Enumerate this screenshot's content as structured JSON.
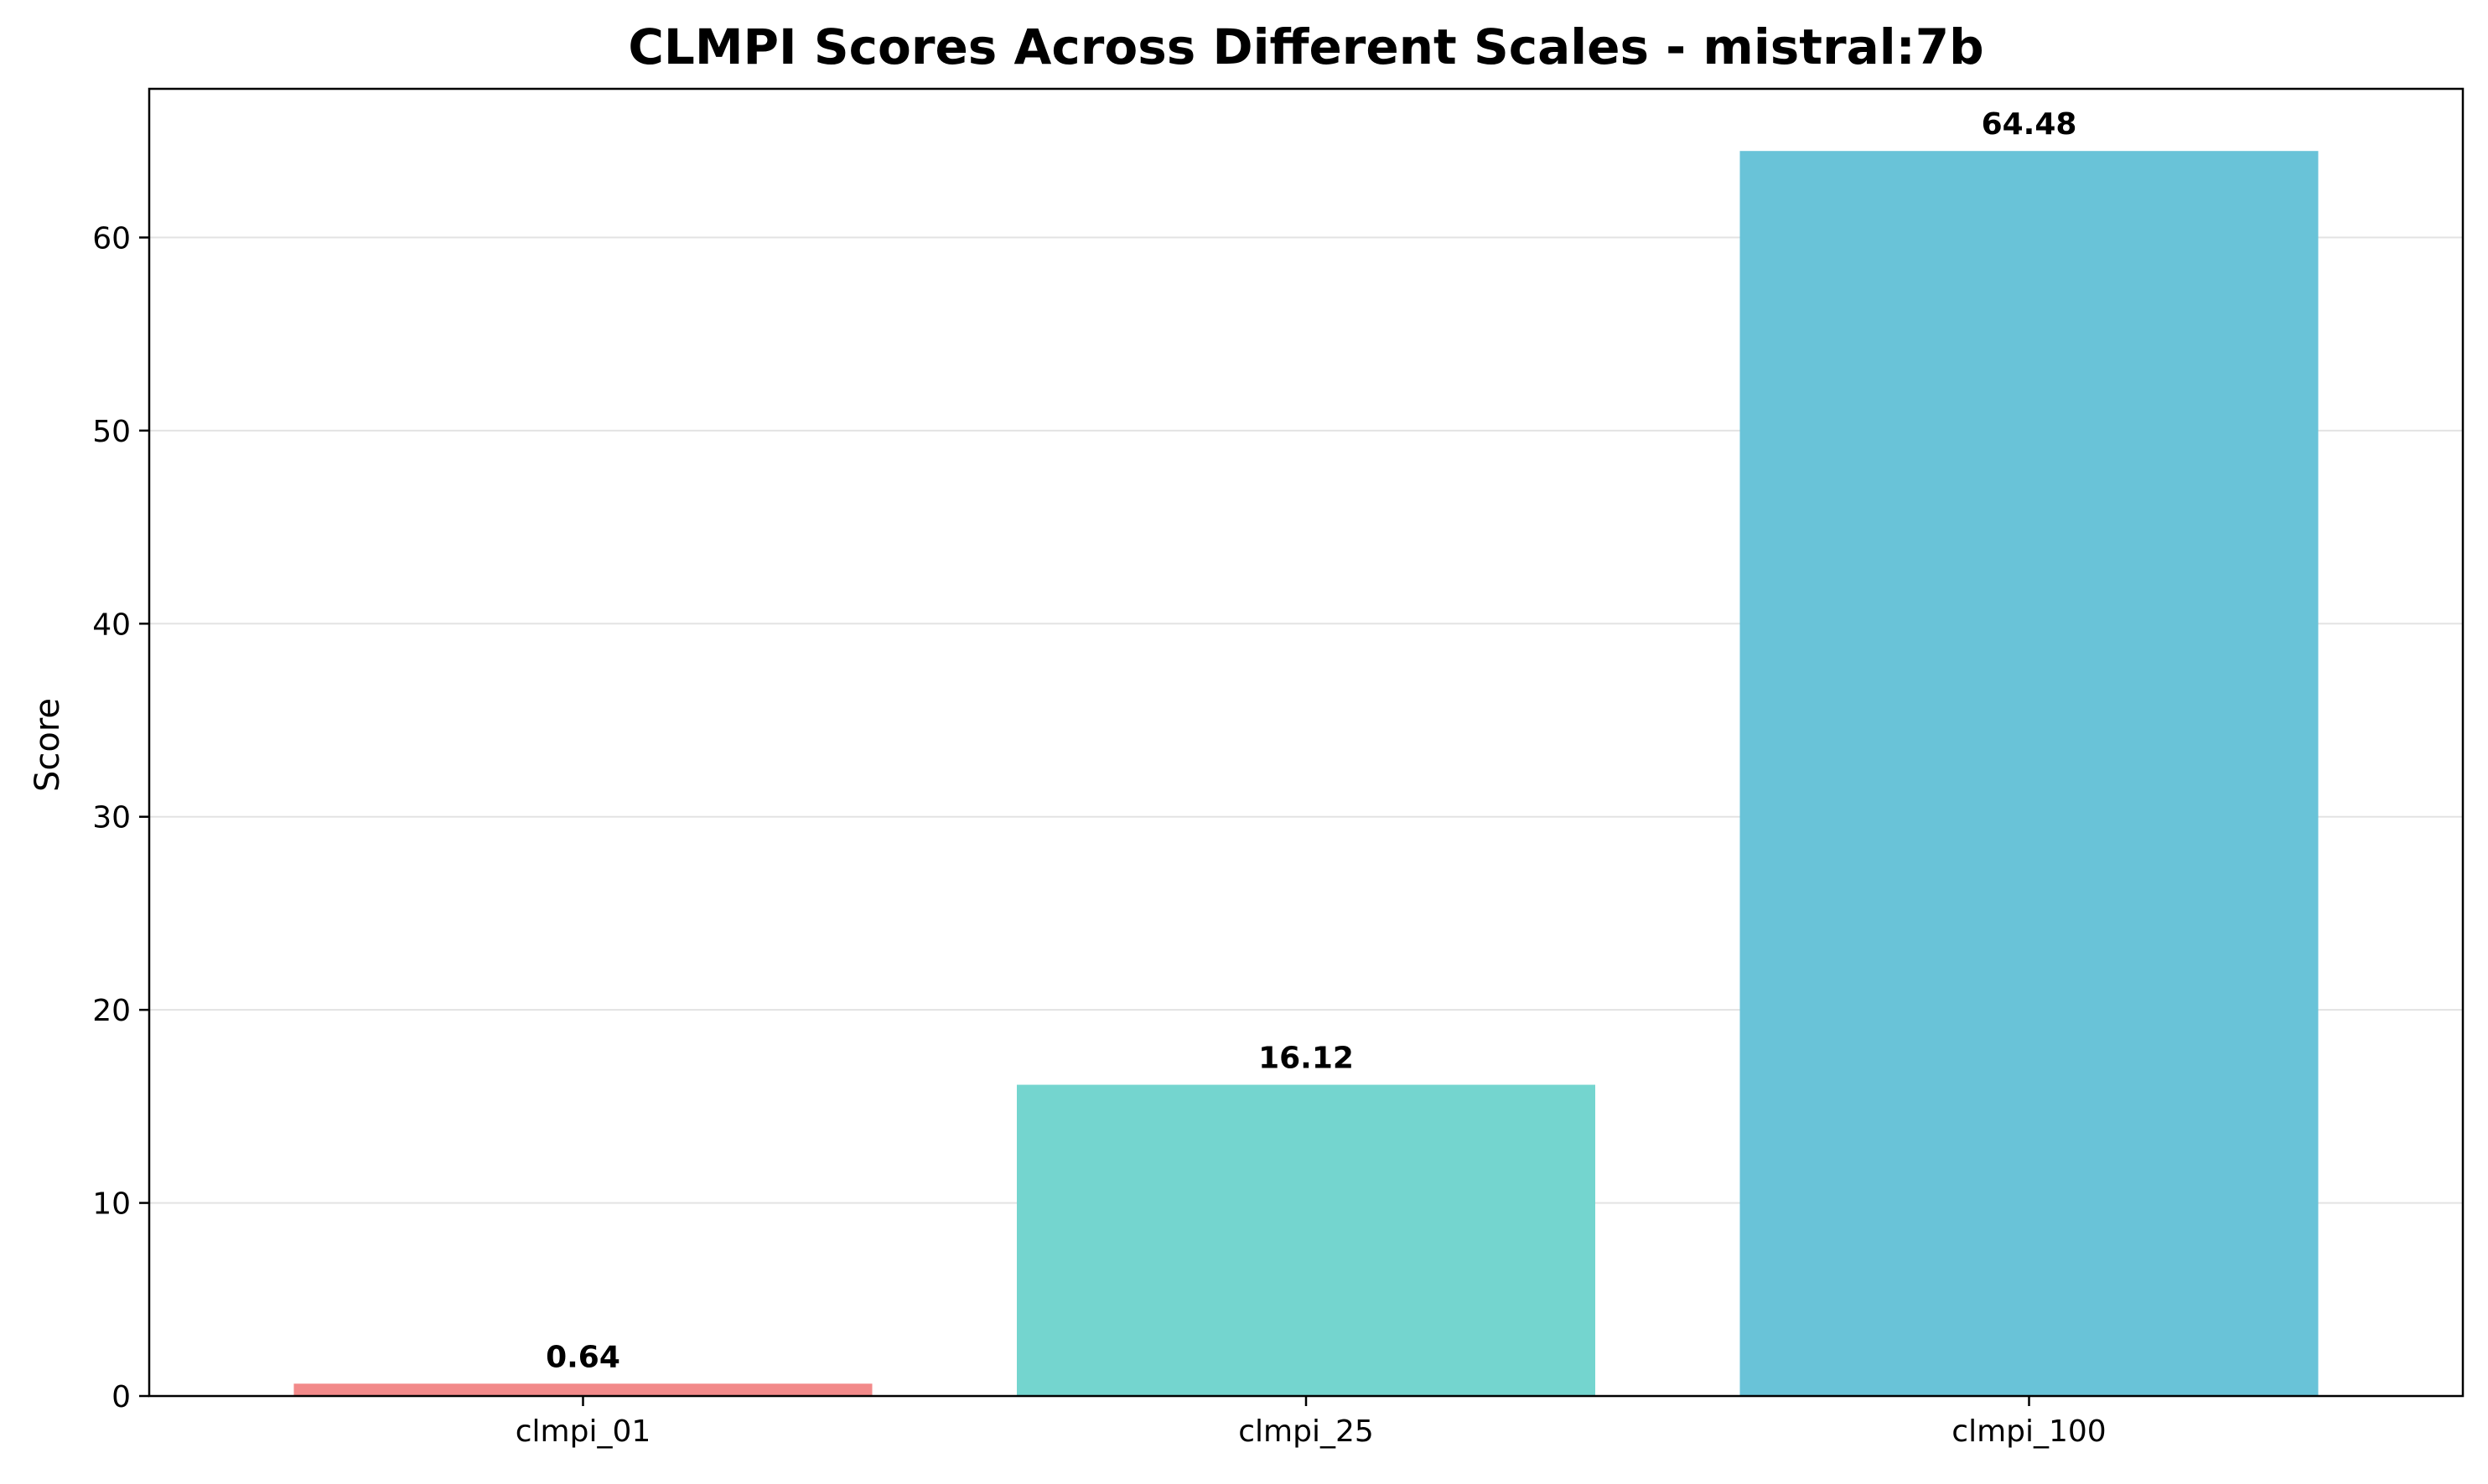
{
  "chart_data": {
    "type": "bar",
    "title": "CLMPI Scores Across Different Scales - mistral:7b",
    "xlabel": "",
    "ylabel": "Score",
    "categories": [
      "clmpi_01",
      "clmpi_25",
      "clmpi_100"
    ],
    "values": [
      0.64,
      16.12,
      64.48
    ],
    "value_labels": [
      "0.64",
      "16.12",
      "64.48"
    ],
    "colors": [
      "#f28a8a",
      "#74d5cf",
      "#69c3d8"
    ],
    "ylim": [
      0,
      67.7
    ],
    "yticks": [
      0,
      10,
      20,
      30,
      40,
      50,
      60
    ],
    "grid": "y",
    "legend": "none"
  }
}
